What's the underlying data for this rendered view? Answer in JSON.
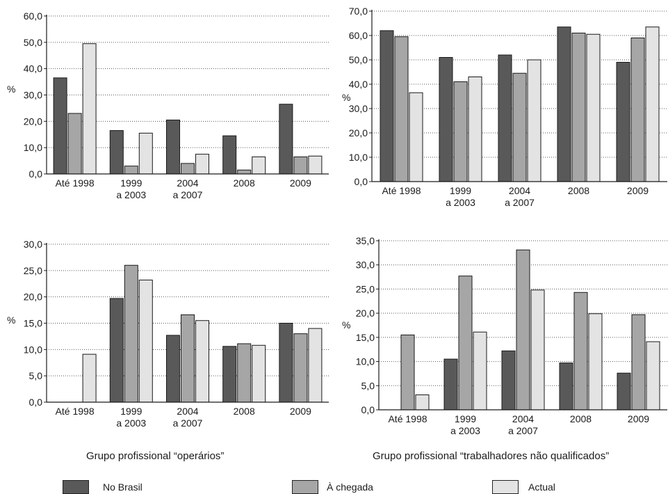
{
  "colors": {
    "no_brasil": "#595959",
    "a_chegada": "#a6a6a6",
    "actual": "#e3e3e3"
  },
  "legend": [
    "No Brasil",
    "À chegada",
    "Actual"
  ],
  "captions": {
    "bottom_left": "Grupo profissional “operários”",
    "bottom_right": "Grupo profissional “trabalhadores não qualificados”"
  },
  "chart_data": [
    {
      "type": "bar",
      "ylabel": "%",
      "ylim": [
        0,
        60
      ],
      "yticks": [
        "0,0",
        "10,0",
        "20,0",
        "30,0",
        "40,0",
        "50,0",
        "60,0"
      ],
      "categories": [
        "Até 1998",
        "1999\na 2003",
        "2004\na 2007",
        "2008",
        "2009"
      ],
      "series": [
        {
          "name": "No Brasil",
          "values": [
            36.5,
            16.5,
            20.5,
            14.5,
            26.5
          ]
        },
        {
          "name": "À chegada",
          "values": [
            23.0,
            3.0,
            4.0,
            1.5,
            6.5
          ]
        },
        {
          "name": "Actual",
          "values": [
            49.5,
            15.5,
            7.5,
            6.5,
            6.8
          ]
        }
      ],
      "grid": true,
      "legend": "bottom"
    },
    {
      "type": "bar",
      "ylabel": "%",
      "ylim": [
        0,
        70
      ],
      "yticks": [
        "0,0",
        "10,0",
        "20,0",
        "30,0",
        "40,0",
        "50,0",
        "60,0",
        "70,0"
      ],
      "categories": [
        "Até 1998",
        "1999\na 2003",
        "2004\na 2007",
        "2008",
        "2009"
      ],
      "series": [
        {
          "name": "No Brasil",
          "values": [
            62.0,
            51.0,
            52.0,
            63.5,
            49.0
          ]
        },
        {
          "name": "À chegada",
          "values": [
            59.5,
            41.0,
            44.5,
            61.0,
            59.0
          ]
        },
        {
          "name": "Actual",
          "values": [
            36.5,
            43.0,
            50.0,
            60.5,
            63.5
          ]
        }
      ],
      "grid": true,
      "legend": "bottom"
    },
    {
      "type": "bar",
      "ylabel": "%",
      "ylim": [
        0,
        30
      ],
      "yticks": [
        "0,0",
        "5,0",
        "10,0",
        "15,0",
        "20,0",
        "25,0",
        "30,0"
      ],
      "categories": [
        "Até 1998",
        "1999\na 2003",
        "2004\na 2007",
        "2008",
        "2009"
      ],
      "series": [
        {
          "name": "No Brasil",
          "values": [
            0.0,
            19.7,
            12.7,
            10.6,
            15.0
          ]
        },
        {
          "name": "À chegada",
          "values": [
            0.0,
            26.0,
            16.6,
            11.1,
            13.0
          ]
        },
        {
          "name": "Actual",
          "values": [
            9.1,
            23.2,
            15.5,
            10.8,
            14.0
          ]
        }
      ],
      "grid": true,
      "legend": "bottom"
    },
    {
      "type": "bar",
      "ylabel": "%",
      "ylim": [
        0,
        35
      ],
      "yticks": [
        "0,0",
        "5,0",
        "10,0",
        "15,0",
        "20,0",
        "25,0",
        "30,0",
        "35,0"
      ],
      "categories": [
        "Até 1998",
        "1999\na 2003",
        "2004\na 2007",
        "2008",
        "2009"
      ],
      "series": [
        {
          "name": "No Brasil",
          "values": [
            0.0,
            10.5,
            12.2,
            9.7,
            7.6
          ]
        },
        {
          "name": "À chegada",
          "values": [
            15.5,
            27.7,
            33.1,
            24.3,
            19.7
          ]
        },
        {
          "name": "Actual",
          "values": [
            3.1,
            16.1,
            24.8,
            19.9,
            14.1
          ]
        }
      ],
      "grid": true,
      "legend": "bottom"
    }
  ]
}
